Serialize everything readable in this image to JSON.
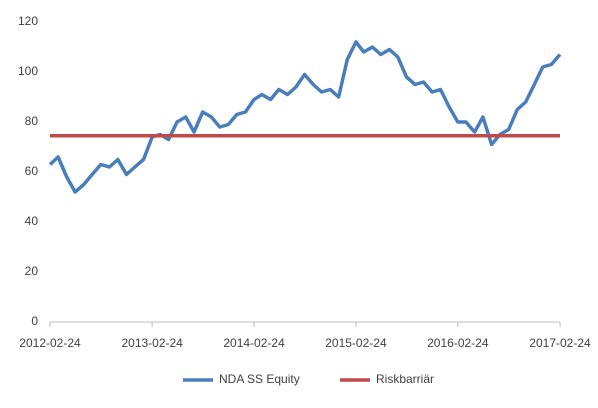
{
  "chart_data": {
    "type": "line",
    "x": [
      "2012-02-24",
      "2012-03-24",
      "2012-04-24",
      "2012-05-24",
      "2012-06-24",
      "2012-07-24",
      "2012-08-24",
      "2012-09-24",
      "2012-10-24",
      "2012-11-24",
      "2012-12-24",
      "2013-01-24",
      "2013-02-24",
      "2013-03-24",
      "2013-04-24",
      "2013-05-24",
      "2013-06-24",
      "2013-07-24",
      "2013-08-24",
      "2013-09-24",
      "2013-10-24",
      "2013-11-24",
      "2013-12-24",
      "2014-01-24",
      "2014-02-24",
      "2014-03-24",
      "2014-04-24",
      "2014-05-24",
      "2014-06-24",
      "2014-07-24",
      "2014-08-24",
      "2014-09-24",
      "2014-10-24",
      "2014-11-24",
      "2014-12-24",
      "2015-01-24",
      "2015-02-24",
      "2015-03-24",
      "2015-04-24",
      "2015-05-24",
      "2015-06-24",
      "2015-07-24",
      "2015-08-24",
      "2015-09-24",
      "2015-10-24",
      "2015-11-24",
      "2015-12-24",
      "2016-01-24",
      "2016-02-24",
      "2016-03-24",
      "2016-04-24",
      "2016-05-24",
      "2016-06-24",
      "2016-07-24",
      "2016-08-24",
      "2016-09-24",
      "2016-10-24",
      "2016-11-24",
      "2016-12-24",
      "2017-01-24",
      "2017-02-24"
    ],
    "series": [
      {
        "name": "NDA SS Equity",
        "color": "#4a7ebb",
        "values": [
          63,
          66,
          58,
          52,
          55,
          59,
          63,
          62,
          65,
          59,
          62,
          65,
          74,
          75,
          73,
          80,
          82,
          76,
          84,
          82,
          78,
          79,
          83,
          84,
          89,
          91,
          89,
          93,
          91,
          94,
          99,
          95,
          92,
          93,
          90,
          105,
          112,
          108,
          110,
          107,
          109,
          106,
          98,
          95,
          96,
          92,
          93,
          86,
          80,
          80,
          76,
          82,
          71,
          75,
          77,
          85,
          88,
          95,
          102,
          103,
          107
        ]
      },
      {
        "name": "Riskbarriär",
        "color": "#be4b48",
        "values": [
          74.5,
          74.5,
          74.5,
          74.5,
          74.5,
          74.5,
          74.5,
          74.5,
          74.5,
          74.5,
          74.5,
          74.5,
          74.5,
          74.5,
          74.5,
          74.5,
          74.5,
          74.5,
          74.5,
          74.5,
          74.5,
          74.5,
          74.5,
          74.5,
          74.5,
          74.5,
          74.5,
          74.5,
          74.5,
          74.5,
          74.5,
          74.5,
          74.5,
          74.5,
          74.5,
          74.5,
          74.5,
          74.5,
          74.5,
          74.5,
          74.5,
          74.5,
          74.5,
          74.5,
          74.5,
          74.5,
          74.5,
          74.5,
          74.5,
          74.5,
          74.5,
          74.5,
          74.5,
          74.5,
          74.5,
          74.5,
          74.5,
          74.5,
          74.5,
          74.5,
          74.5
        ]
      }
    ],
    "xlim": [
      "2012-02-24",
      "2017-02-24"
    ],
    "xticks": [
      "2012-02-24",
      "2013-02-24",
      "2014-02-24",
      "2015-02-24",
      "2016-02-24",
      "2017-02-24"
    ],
    "ylim": [
      0,
      120
    ],
    "yticks": [
      0,
      20,
      40,
      60,
      80,
      100,
      120
    ],
    "legend": "bottom"
  }
}
